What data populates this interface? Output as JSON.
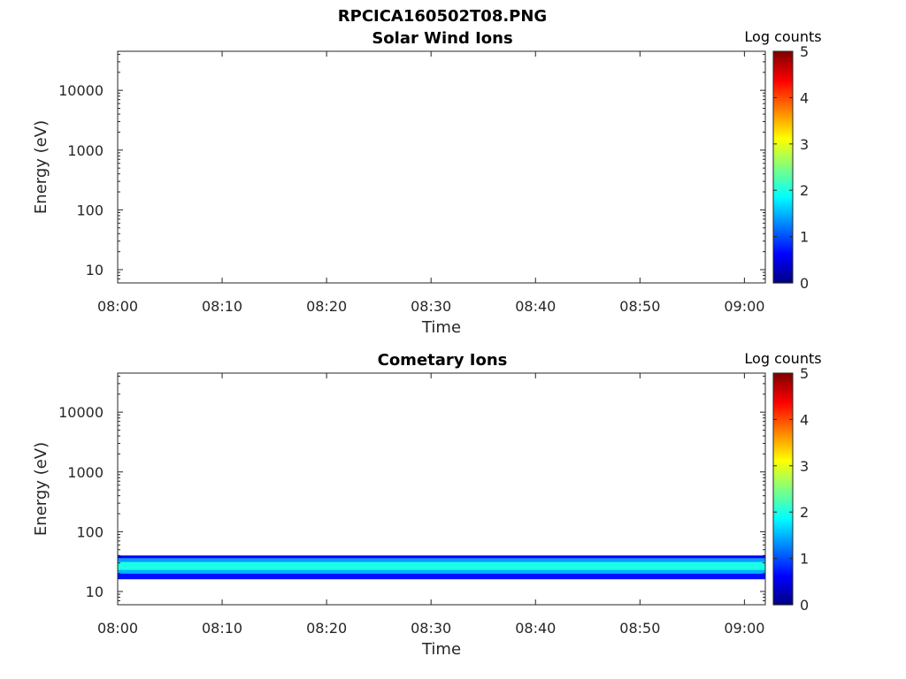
{
  "figure_title": "RPCICA160502T08.PNG",
  "colorbar": {
    "label": "Log counts",
    "ticks": [
      "0",
      "1",
      "2",
      "3",
      "4",
      "5"
    ],
    "colormap": "jet"
  },
  "chart_data": [
    {
      "type": "heatmap",
      "title": "Solar Wind Ions",
      "xlabel": "Time",
      "ylabel": "Energy (eV)",
      "x_ticks": [
        "08:00",
        "08:10",
        "08:20",
        "08:30",
        "08:40",
        "08:50",
        "09:00"
      ],
      "y_ticks": [
        "10",
        "100",
        "1000",
        "10000"
      ],
      "y_scale": "log",
      "xlim": [
        "08:00",
        "09:02"
      ],
      "ylim": [
        6,
        45000
      ],
      "clim": [
        0,
        5
      ],
      "bands": []
    },
    {
      "type": "heatmap",
      "title": "Cometary Ions",
      "xlabel": "Time",
      "ylabel": "Energy (eV)",
      "x_ticks": [
        "08:00",
        "08:10",
        "08:20",
        "08:30",
        "08:40",
        "08:50",
        "09:00"
      ],
      "y_ticks": [
        "10",
        "100",
        "1000",
        "10000"
      ],
      "y_scale": "log",
      "xlim": [
        "08:00",
        "09:02"
      ],
      "ylim": [
        6,
        45000
      ],
      "clim": [
        0,
        5
      ],
      "bands": [
        {
          "t_start": "08:00",
          "t_end": "09:02",
          "energy_low": 16,
          "energy_high": 20,
          "log_counts": 0.7
        },
        {
          "t_start": "08:00",
          "t_end": "09:02",
          "energy_low": 20,
          "energy_high": 23,
          "log_counts": 1.5
        },
        {
          "t_start": "08:00",
          "t_end": "09:02",
          "energy_low": 23,
          "energy_high": 31,
          "log_counts": 2.0
        },
        {
          "t_start": "08:00",
          "t_end": "09:02",
          "energy_low": 31,
          "energy_high": 36,
          "log_counts": 1.4
        },
        {
          "t_start": "08:00",
          "t_end": "09:02",
          "energy_low": 36,
          "energy_high": 40,
          "log_counts": 0.6
        }
      ]
    }
  ]
}
